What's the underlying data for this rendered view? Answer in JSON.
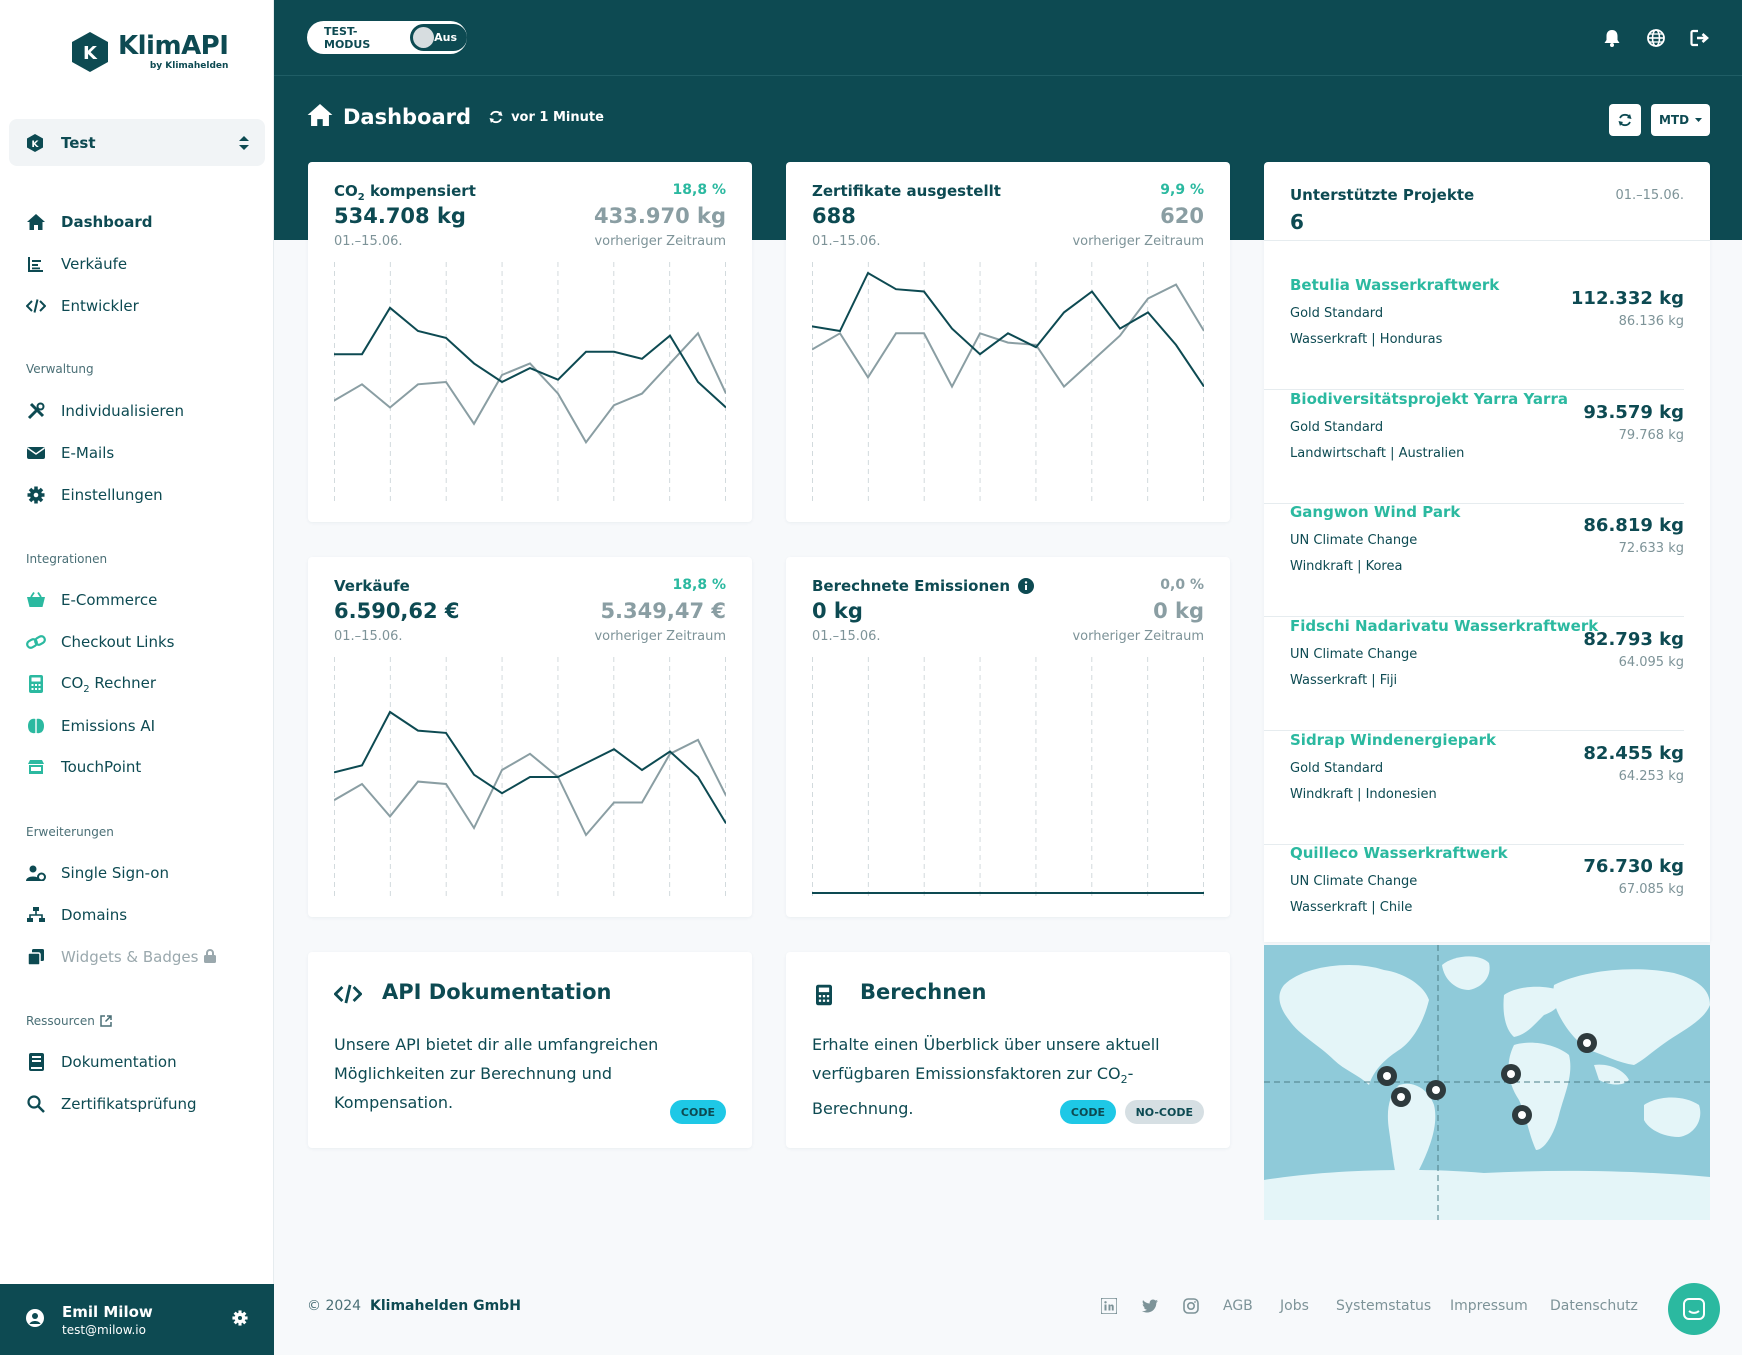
{
  "brand": {
    "name": "KlimAPI",
    "sub": "by Klimahelden",
    "logo_letter": "K",
    "primary": "#0d4a52",
    "accent": "#2bb9a0"
  },
  "workspace": {
    "name": "Test"
  },
  "nav": {
    "main": [
      {
        "label": "Dashboard",
        "icon": "home-icon",
        "active": true
      },
      {
        "label": "Verkäufe",
        "icon": "list-chart-icon"
      },
      {
        "label": "Entwickler",
        "icon": "code-icon"
      }
    ],
    "verwaltung_title": "Verwaltung",
    "verwaltung": [
      {
        "label": "Individualisieren",
        "icon": "tools-icon"
      },
      {
        "label": "E-Mails",
        "icon": "envelope-icon"
      },
      {
        "label": "Einstellungen",
        "icon": "gear-icon"
      }
    ],
    "integrationen_title": "Integrationen",
    "integrationen": [
      {
        "label": "E-Commerce",
        "icon": "basket-icon"
      },
      {
        "label": "Checkout Links",
        "icon": "link-icon"
      },
      {
        "label_main": "CO",
        "label_sub": "2",
        "label_rest": " Rechner",
        "icon": "calculator-icon"
      },
      {
        "label": "Emissions AI",
        "icon": "brain-icon"
      },
      {
        "label": "TouchPoint",
        "icon": "store-icon"
      }
    ],
    "erweiterungen_title": "Erweiterungen",
    "erweiterungen": [
      {
        "label": "Single Sign-on",
        "icon": "user-gear-icon"
      },
      {
        "label": "Domains",
        "icon": "sitemap-icon"
      },
      {
        "label": "Widgets & Badges",
        "icon": "clone-icon",
        "locked": true
      }
    ],
    "ressourcen_title": "Ressourcen",
    "ressourcen": [
      {
        "label": "Dokumentation",
        "icon": "book-icon"
      },
      {
        "label": "Zertifikatsprüfung",
        "icon": "search-icon"
      }
    ]
  },
  "user": {
    "name": "Emil Milow",
    "email": "test@milow.io"
  },
  "topbar": {
    "test_mode_label": "TEST-MODUS",
    "toggle_text": "Aus"
  },
  "header": {
    "title": "Dashboard",
    "refresh": "vor 1 Minute",
    "period": "MTD"
  },
  "stats": {
    "co2": {
      "label_main": "CO",
      "label_sub": "2",
      "label_rest": " kompensiert",
      "value": "534.708 kg",
      "date": "01.–15.06.",
      "pct": "18,8 %",
      "prev": "433.970 kg",
      "prev_label": "vorheriger Zeitraum"
    },
    "zert": {
      "label": "Zertifikate ausgestellt",
      "value": "688",
      "date": "01.–15.06.",
      "pct": "9,9 %",
      "prev": "620",
      "prev_label": "vorheriger Zeitraum"
    },
    "verk": {
      "label": "Verkäufe",
      "value": "6.590,62 €",
      "date": "01.–15.06.",
      "pct": "18,8 %",
      "prev": "5.349,47 €",
      "prev_label": "vorheriger Zeitraum"
    },
    "emis": {
      "label": "Berechnete Emissionen",
      "value": "0 kg",
      "date": "01.–15.06.",
      "pct": "0,0 %",
      "prev": "0 kg",
      "prev_label": "vorheriger Zeitraum"
    }
  },
  "chart_data": [
    {
      "type": "line",
      "name": "co2",
      "series": [
        {
          "values": [
            0.62,
            0.62,
            0.82,
            0.72,
            0.69,
            0.58,
            0.5,
            0.56,
            0.51,
            0.63,
            0.63,
            0.6,
            0.7,
            0.5,
            0.39
          ]
        },
        {
          "values": [
            0.42,
            0.49,
            0.39,
            0.49,
            0.5,
            0.32,
            0.53,
            0.58,
            0.45,
            0.24,
            0.4,
            0.45,
            0.58,
            0.71,
            0.45
          ]
        }
      ]
    },
    {
      "type": "line",
      "name": "zert",
      "series": [
        {
          "values": [
            0.74,
            0.72,
            0.97,
            0.9,
            0.89,
            0.73,
            0.62,
            0.71,
            0.65,
            0.8,
            0.89,
            0.73,
            0.8,
            0.66,
            0.48
          ]
        },
        {
          "values": [
            0.64,
            0.71,
            0.52,
            0.71,
            0.71,
            0.48,
            0.71,
            0.67,
            0.66,
            0.48,
            0.59,
            0.7,
            0.86,
            0.92,
            0.72
          ]
        }
      ]
    },
    {
      "type": "line",
      "name": "verk",
      "series": [
        {
          "values": [
            0.52,
            0.55,
            0.78,
            0.7,
            0.69,
            0.51,
            0.43,
            0.5,
            0.5,
            0.56,
            0.62,
            0.53,
            0.61,
            0.5,
            0.3
          ]
        },
        {
          "values": [
            0.4,
            0.47,
            0.33,
            0.48,
            0.47,
            0.28,
            0.53,
            0.6,
            0.5,
            0.25,
            0.39,
            0.39,
            0.6,
            0.66,
            0.42
          ]
        }
      ]
    },
    {
      "type": "line",
      "name": "emis",
      "series": [
        {
          "values": [
            0,
            0,
            0,
            0,
            0,
            0,
            0,
            0,
            0,
            0,
            0,
            0,
            0,
            0,
            0
          ]
        }
      ]
    }
  ],
  "docs": {
    "api": {
      "title": "API Dokumentation",
      "text": "Unsere API bietet dir alle umfangreichen Möglichkeiten zur Berechnung und Kompensation.",
      "badge": "CODE"
    },
    "calc": {
      "title": "Berechnen",
      "text_main": "Erhalte einen Überblick über unsere aktuell verfügbaren Emissionsfaktoren zur CO",
      "text_sub": "2",
      "text_rest": "-Berechnung.",
      "badge1": "CODE",
      "badge2": "NO-CODE"
    }
  },
  "projects": {
    "title": "Unterstützte Projekte",
    "count": "6",
    "date": "01.–15.06.",
    "items": [
      {
        "name": "Betulia Wasserkraftwerk",
        "standard": "Gold Standard",
        "category": "Wasserkraft | Honduras",
        "value": "112.332 kg",
        "prev": "86.136 kg"
      },
      {
        "name": "Biodiversitätsprojekt Yarra Yarra",
        "standard": "Gold Standard",
        "category": "Landwirtschaft | Australien",
        "value": "93.579 kg",
        "prev": "79.768 kg"
      },
      {
        "name": "Gangwon Wind Park",
        "standard": "UN Climate Change",
        "category": "Windkraft | Korea",
        "value": "86.819 kg",
        "prev": "72.633 kg"
      },
      {
        "name": "Fidschi Nadarivatu Wasserkraftwerk",
        "standard": "UN Climate Change",
        "category": "Wasserkraft | Fiji",
        "value": "82.793 kg",
        "prev": "64.095 kg"
      },
      {
        "name": "Sidrap Windenergiepark",
        "standard": "Gold Standard",
        "category": "Windkraft | Indonesien",
        "value": "82.455 kg",
        "prev": "64.253 kg"
      },
      {
        "name": "Quilleco Wasserkraftwerk",
        "standard": "UN Climate Change",
        "category": "Wasserkraft | Chile",
        "value": "76.730 kg",
        "prev": "67.085 kg"
      }
    ]
  },
  "footer": {
    "copy": "© 2024",
    "company": "Klimahelden GmbH",
    "links": [
      "AGB",
      "Jobs",
      "Systemstatus",
      "Impressum",
      "Datenschutz"
    ]
  }
}
